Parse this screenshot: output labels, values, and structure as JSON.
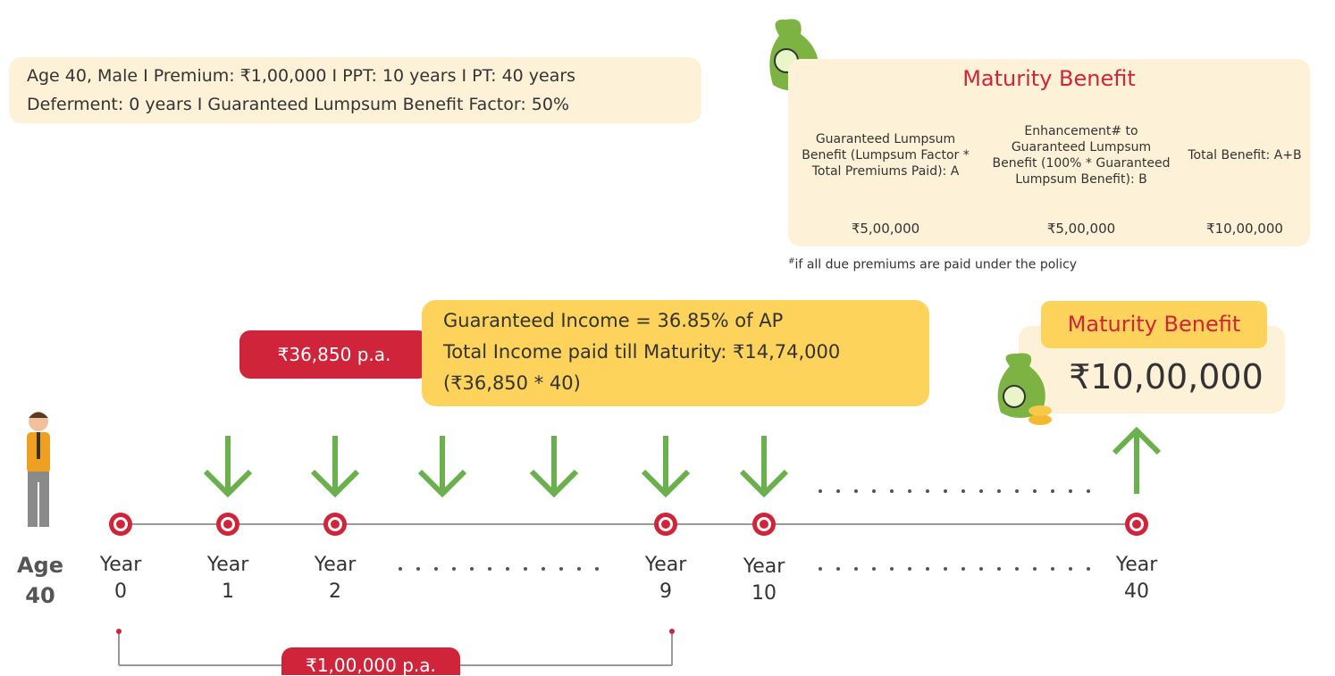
{
  "info": {
    "line1": "Age 40, Male  I  Premium: ₹1,00,000  I  PPT: 10 years  I  PT: 40 years",
    "line2": "Deferment: 0 years  I  Guaranteed Lumpsum Benefit Factor: 50%"
  },
  "table": {
    "title": "Maturity Benefit",
    "headers": [
      "Guaranteed Lumpsum Benefit (Lumpsum Factor * Total Premiums Paid): A",
      "Enhancement# to Guaranteed Lumpsum Benefit (100% * Guaranteed Lumpsum Benefit): B",
      "Total Benefit: A+B"
    ],
    "values": [
      "₹5,00,000",
      "₹5,00,000",
      "₹10,00,000"
    ],
    "footnote_mark": "#",
    "footnote": "if all due premiums are paid under the policy"
  },
  "income": {
    "pill": "₹36,850 p.a.",
    "line1": "Guaranteed Income = 36.85% of AP",
    "line2": "Total Income paid till Maturity: ₹14,74,000",
    "line3": "(₹36,850 * 40)"
  },
  "maturity": {
    "tag": "Maturity Benefit",
    "amount": "₹10,00,000"
  },
  "age": {
    "label": "Age",
    "value": "40"
  },
  "timeline": [
    {
      "label": "Year",
      "number": "0"
    },
    {
      "label": "Year",
      "number": "1"
    },
    {
      "label": "Year",
      "number": "2"
    },
    {
      "label": "Year",
      "number": "9"
    },
    {
      "label": "Year",
      "number": "10"
    },
    {
      "label": "Year",
      "number": "40"
    }
  ],
  "premium": {
    "pill": "₹1,00,000 p.a."
  }
}
